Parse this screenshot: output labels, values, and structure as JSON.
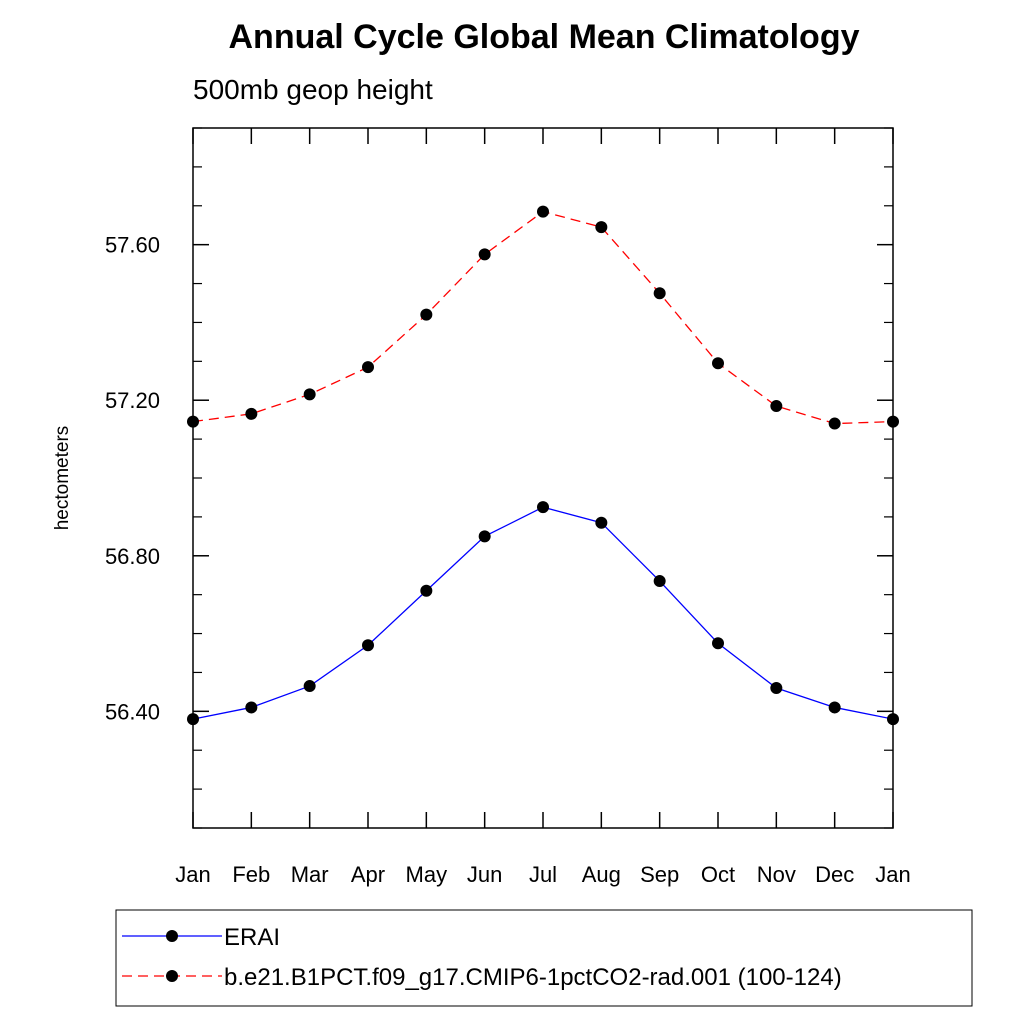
{
  "chart_data": {
    "type": "line",
    "title": "Annual Cycle Global Mean Climatology",
    "subtitle": "500mb geop height",
    "xlabel": "",
    "ylabel": "hectometers",
    "categories": [
      "Jan",
      "Feb",
      "Mar",
      "Apr",
      "May",
      "Jun",
      "Jul",
      "Aug",
      "Sep",
      "Oct",
      "Nov",
      "Dec",
      "Jan"
    ],
    "ylim": [
      56.1,
      57.9
    ],
    "yticks": [
      56.4,
      56.8,
      57.2,
      57.6
    ],
    "ytick_labels": [
      "56.40",
      "56.80",
      "57.20",
      "57.60"
    ],
    "grid": false,
    "legend_position": "bottom",
    "series": [
      {
        "name": "ERAI",
        "color": "#0000ff",
        "line_style": "solid",
        "marker": "filled-circle",
        "values": [
          56.38,
          56.41,
          56.465,
          56.57,
          56.71,
          56.85,
          56.925,
          56.885,
          56.735,
          56.575,
          56.46,
          56.41,
          56.38
        ]
      },
      {
        "name": "b.e21.B1PCT.f09_g17.CMIP6-1pctCO2-rad.001 (100-124)",
        "color": "#ff0000",
        "line_style": "dashed",
        "marker": "filled-circle",
        "values": [
          57.145,
          57.165,
          57.215,
          57.285,
          57.42,
          57.575,
          57.685,
          57.645,
          57.475,
          57.295,
          57.185,
          57.14,
          57.145
        ]
      }
    ]
  }
}
